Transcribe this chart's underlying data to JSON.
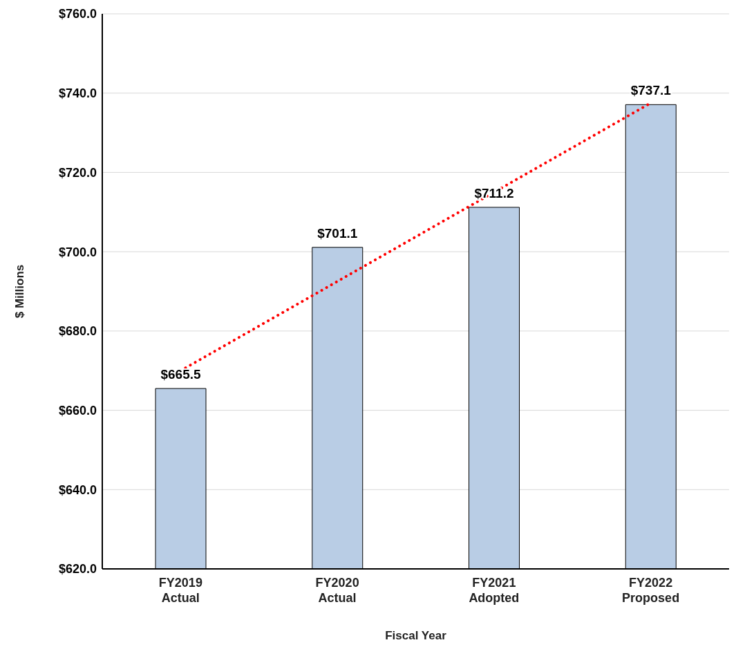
{
  "chart_data": {
    "type": "bar",
    "xlabel": "Fiscal Year",
    "ylabel": "$ Millions",
    "categories": [
      "FY2019\nActual",
      "FY2020\nActual",
      "FY2021\nAdopted",
      "FY2022\nProposed"
    ],
    "series": [
      {
        "color": "#b9cde5",
        "values": [
          665.5,
          701.1,
          711.2,
          737.1
        ],
        "value_labels": [
          "$665.5",
          "$701.1",
          "$711.2",
          "$737.1"
        ]
      },
      {
        "type": "line",
        "color": "#ff0000",
        "line_style": "dotted",
        "marker": "none",
        "x": [
          "FY2019\nActual",
          "FY2020\nActual",
          "FY2021\nAdopted",
          "FY2022\nProposed"
        ],
        "values": [
          670.0,
          692.5,
          715.0,
          737.5
        ]
      }
    ],
    "ylim": [
      620,
      760
    ],
    "yticks": [
      {
        "value": 620,
        "label": "$620.0"
      },
      {
        "value": 640,
        "label": "$640.0"
      },
      {
        "value": 660,
        "label": "$660.0"
      },
      {
        "value": 680,
        "label": "$680.0"
      },
      {
        "value": 700,
        "label": "$700.0"
      },
      {
        "value": 720,
        "label": "$720.0"
      },
      {
        "value": 740,
        "label": "$740.0"
      },
      {
        "value": 760,
        "label": "$760.0"
      }
    ],
    "grid": "y"
  }
}
